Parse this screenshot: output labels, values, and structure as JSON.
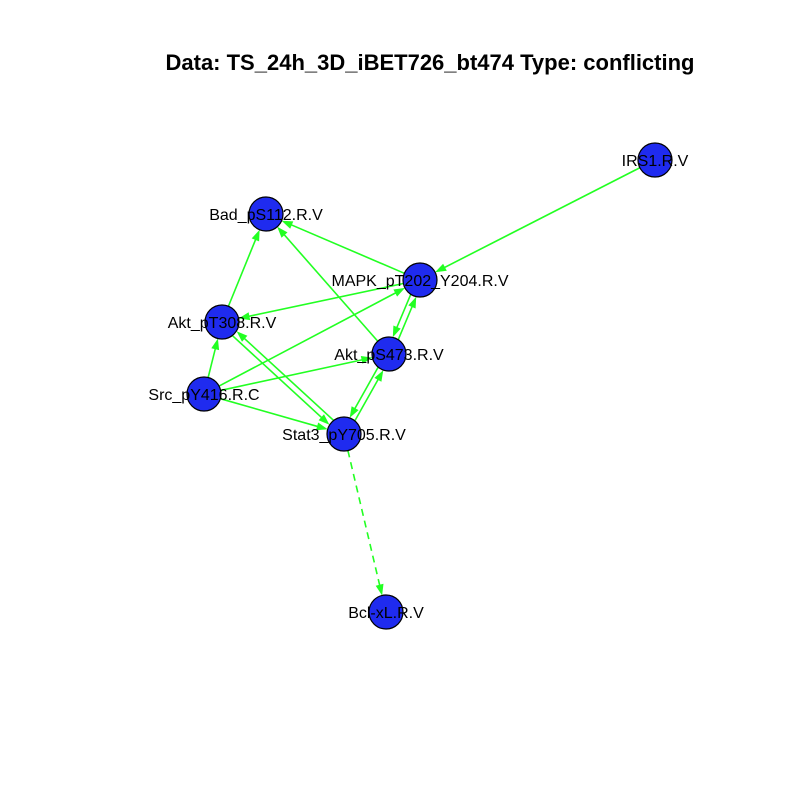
{
  "title": "Data: TS_24h_3D_iBET726_bt474 Type: conflicting",
  "colors": {
    "node_fill": "#1f2bef",
    "edge": "#22ff22",
    "background": "#ffffff"
  },
  "nodes": [
    {
      "id": "IRS1",
      "label": "IRS1.R.V"
    },
    {
      "id": "Bad",
      "label": "Bad_pS112.R.V"
    },
    {
      "id": "MAPK",
      "label": "MAPK_pT202_Y204.R.V"
    },
    {
      "id": "AktT",
      "label": "Akt_pT308.R.V"
    },
    {
      "id": "AktS",
      "label": "Akt_pS473.R.V"
    },
    {
      "id": "Src",
      "label": "Src_pY416.R.C"
    },
    {
      "id": "Stat3",
      "label": "Stat3_pY705.R.V"
    },
    {
      "id": "Bcl",
      "label": "Bcl-xL.R.V"
    }
  ],
  "edges": [
    {
      "from": "IRS1",
      "to": "MAPK",
      "style": "solid"
    },
    {
      "from": "MAPK",
      "to": "Bad",
      "style": "solid"
    },
    {
      "from": "MAPK",
      "to": "AktT",
      "style": "solid"
    },
    {
      "from": "MAPK",
      "to": "AktS",
      "style": "solid"
    },
    {
      "from": "AktS",
      "to": "MAPK",
      "style": "solid"
    },
    {
      "from": "AktS",
      "to": "Bad",
      "style": "solid"
    },
    {
      "from": "AktS",
      "to": "Stat3",
      "style": "solid"
    },
    {
      "from": "Stat3",
      "to": "AktS",
      "style": "solid"
    },
    {
      "from": "AktT",
      "to": "Bad",
      "style": "solid"
    },
    {
      "from": "AktT",
      "to": "Stat3",
      "style": "solid"
    },
    {
      "from": "Stat3",
      "to": "AktT",
      "style": "solid"
    },
    {
      "from": "Src",
      "to": "AktT",
      "style": "solid"
    },
    {
      "from": "Src",
      "to": "AktS",
      "style": "solid"
    },
    {
      "from": "Src",
      "to": "MAPK",
      "style": "solid"
    },
    {
      "from": "Src",
      "to": "Stat3",
      "style": "solid"
    },
    {
      "from": "Stat3",
      "to": "Bcl",
      "style": "dashed"
    }
  ]
}
